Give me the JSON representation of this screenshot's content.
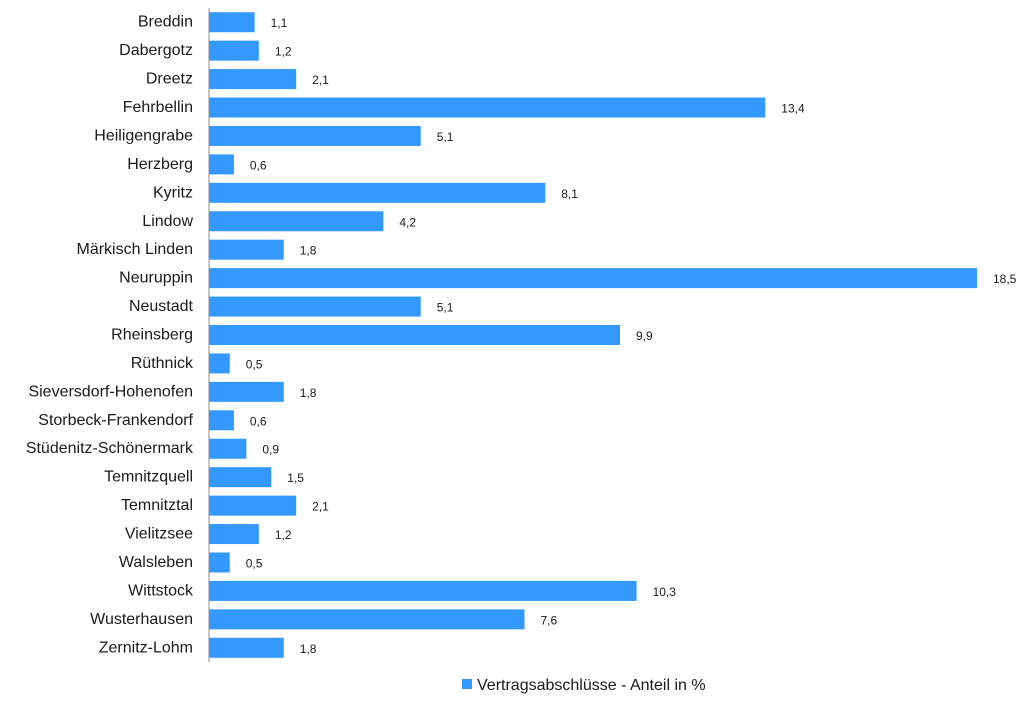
{
  "chart_data": {
    "type": "bar",
    "orientation": "horizontal",
    "categories": [
      "Breddin",
      "Dabergotz",
      "Dreetz",
      "Fehrbellin",
      "Heiligengrabe",
      "Herzberg",
      "Kyritz",
      "Lindow",
      "Märkisch Linden",
      "Neuruppin",
      "Neustadt",
      "Rheinsberg",
      "Rüthnick",
      "Sieversdorf-Hohenofen",
      "Storbeck-Frankendorf",
      "Stüdenitz-Schönermark",
      "Temnitzquell",
      "Temnitztal",
      "Vielitzsee",
      "Walsleben",
      "Wittstock",
      "Wusterhausen",
      "Zernitz-Lohm"
    ],
    "series": [
      {
        "name": "Vertragsabschlüsse - Anteil in %",
        "color": "#3399ff",
        "values": [
          1.1,
          1.2,
          2.1,
          13.4,
          5.1,
          0.6,
          8.1,
          4.2,
          1.8,
          18.5,
          5.1,
          9.9,
          0.5,
          1.8,
          0.6,
          0.9,
          1.5,
          2.1,
          1.2,
          0.5,
          10.3,
          7.6,
          1.8
        ]
      }
    ],
    "value_labels": [
      "1,1",
      "1,2",
      "2,1",
      "13,4",
      "5,1",
      "0,6",
      "8,1",
      "4,2",
      "1,8",
      "18,5",
      "5,1",
      "9,9",
      "0,5",
      "1,8",
      "0,6",
      "0,9",
      "1,5",
      "2,1",
      "1,2",
      "0,5",
      "10,3",
      "7,6",
      "1,8"
    ],
    "xlim": [
      0,
      18.5
    ],
    "grid": false,
    "value_axis_visible": false,
    "legend_position": "bottom-right"
  }
}
